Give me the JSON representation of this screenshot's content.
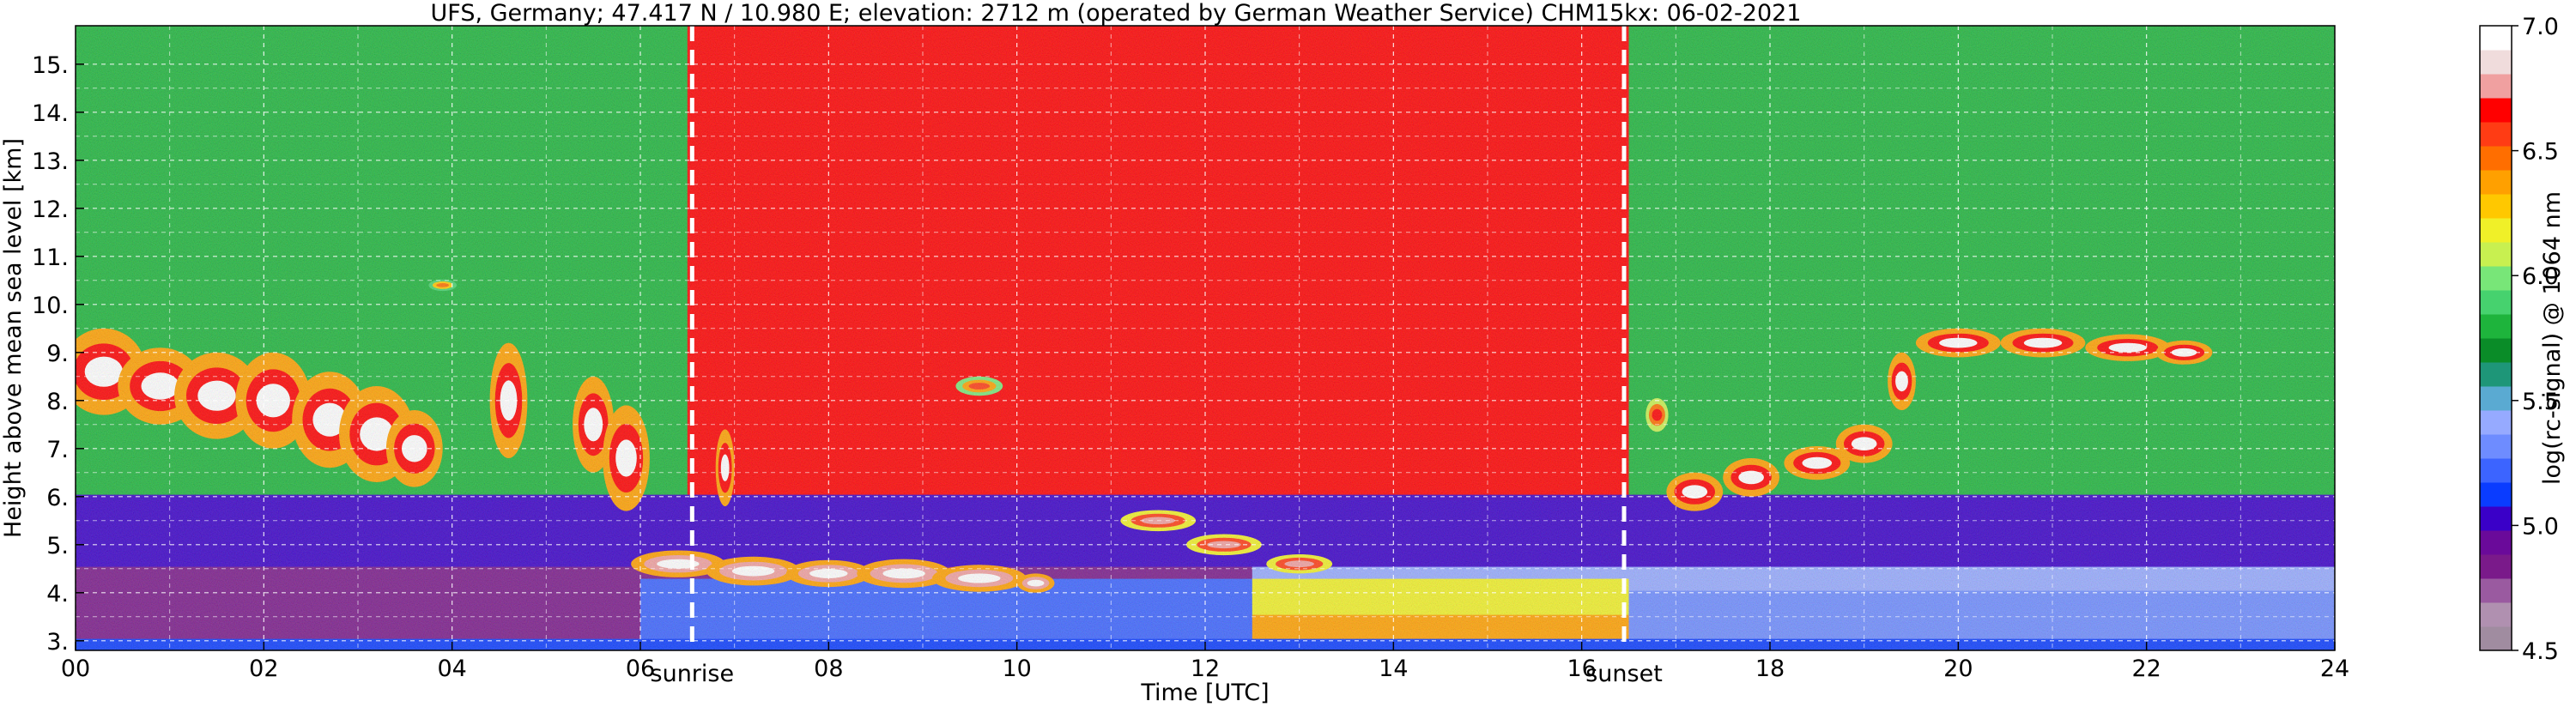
{
  "chart_data": {
    "type": "heatmap",
    "title": "UFS, Germany; 47.417 N / 10.980 E; elevation: 2712 m  (operated by German Weather Service)     CHM15kx: 06-02-2021",
    "xlabel": "Time [UTC]",
    "ylabel": "Height above mean sea level [km]",
    "colorbar_label": "log(rc-signal) @ 1064 nm",
    "xlim": [
      0,
      24
    ],
    "ylim": [
      2.8,
      15.8
    ],
    "x_ticks": [
      0,
      2,
      4,
      6,
      8,
      10,
      12,
      14,
      16,
      18,
      20,
      22,
      24
    ],
    "x_tick_labels": [
      "00",
      "02",
      "04",
      "06",
      "08",
      "10",
      "12",
      "14",
      "16",
      "18",
      "20",
      "22",
      "24"
    ],
    "y_ticks": [
      3,
      4,
      5,
      6,
      7,
      8,
      9,
      10,
      11,
      12,
      13,
      14,
      15
    ],
    "y_tick_labels": [
      "3.",
      "4.",
      "5.",
      "6.",
      "7.",
      "8.",
      "9.",
      "10.",
      "11.",
      "12.",
      "13.",
      "14.",
      "15."
    ],
    "colorbar_range": [
      4.5,
      7.0
    ],
    "colorbar_ticks": [
      4.5,
      5.0,
      5.5,
      6.0,
      6.5,
      7.0
    ],
    "colorbar_tick_labels": [
      "4.5",
      "5.0",
      "5.5",
      "6.0",
      "6.5",
      "7.0"
    ],
    "colormap": [
      "#a08ca0",
      "#b090b0",
      "#9a5aa0",
      "#7a1a8a",
      "#6a0a9a",
      "#3a00c8",
      "#0a3cff",
      "#3c64ff",
      "#6e8cff",
      "#96aaff",
      "#5aaad2",
      "#1e9678",
      "#0a8c28",
      "#1eb43c",
      "#46d26e",
      "#78e678",
      "#c8f050",
      "#f0f028",
      "#ffc800",
      "#ffa000",
      "#ff6e00",
      "#ff3c14",
      "#ff0000",
      "#f0a0a0",
      "#f0dcdc",
      "#ffffff"
    ],
    "grid": true,
    "annotations": [
      {
        "label": "sunrise",
        "time": 6.55
      },
      {
        "label": "sunset",
        "time": 16.45
      }
    ]
  }
}
